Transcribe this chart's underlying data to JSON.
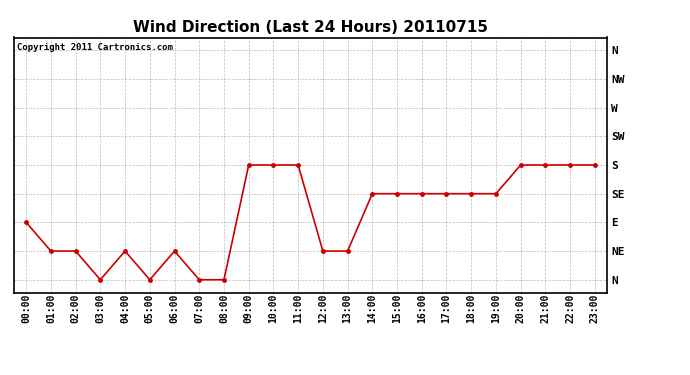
{
  "title": "Wind Direction (Last 24 Hours) 20110715",
  "copyright_text": "Copyright 2011 Cartronics.com",
  "x_labels": [
    "00:00",
    "01:00",
    "02:00",
    "03:00",
    "04:00",
    "05:00",
    "06:00",
    "07:00",
    "08:00",
    "09:00",
    "10:00",
    "11:00",
    "12:00",
    "13:00",
    "14:00",
    "15:00",
    "16:00",
    "17:00",
    "18:00",
    "19:00",
    "20:00",
    "21:00",
    "22:00",
    "23:00"
  ],
  "y_ticks": [
    0,
    45,
    90,
    135,
    180,
    225,
    270,
    315,
    360
  ],
  "y_tick_labels": [
    "N",
    "NE",
    "E",
    "SE",
    "S",
    "SW",
    "W",
    "NW",
    "N"
  ],
  "y_values": [
    90,
    45,
    45,
    0,
    45,
    0,
    45,
    0,
    0,
    180,
    180,
    180,
    45,
    45,
    135,
    135,
    135,
    135,
    135,
    135,
    180,
    180,
    180,
    180
  ],
  "line_color": "#cc0000",
  "marker": "o",
  "marker_size": 2.5,
  "background_color": "#ffffff",
  "grid_color": "#aaaaaa",
  "title_fontsize": 11,
  "copyright_fontsize": 6.5,
  "tick_fontsize": 7,
  "ytick_fontsize": 8,
  "ylim": [
    -20,
    380
  ],
  "xlim": [
    -0.5,
    23.5
  ]
}
